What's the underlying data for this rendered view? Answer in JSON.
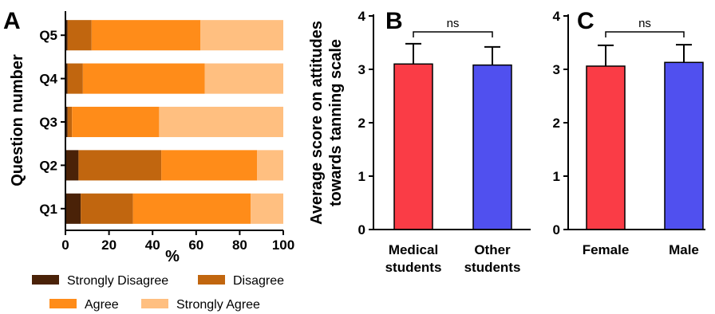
{
  "chart_data": [
    {
      "panel": "A",
      "type": "bar",
      "orientation": "horizontal",
      "stacked": true,
      "categories": [
        "Q5",
        "Q4",
        "Q3",
        "Q2",
        "Q1"
      ],
      "series": [
        {
          "name": "Strongly Disagree",
          "color": "#4a2208",
          "values": [
            1,
            1,
            1,
            6,
            7
          ]
        },
        {
          "name": "Disagree",
          "color": "#c1660f",
          "values": [
            11,
            7,
            2,
            38,
            24
          ]
        },
        {
          "name": "Agree",
          "color": "#ff8c19",
          "values": [
            50,
            56,
            40,
            44,
            54
          ]
        },
        {
          "name": "Strongly Agree",
          "color": "#ffbf80",
          "values": [
            38,
            36,
            57,
            12,
            15
          ]
        }
      ],
      "xlabel": "%",
      "ylabel": "Question number",
      "xlim": [
        0,
        100
      ],
      "xticks": [
        0,
        20,
        40,
        60,
        80,
        100
      ],
      "legend_position": "bottom"
    },
    {
      "panel": "B",
      "type": "bar",
      "categories": [
        [
          "Medical",
          "students"
        ],
        [
          "Other",
          "students"
        ]
      ],
      "values": [
        3.1,
        3.08
      ],
      "errors": [
        0.38,
        0.34
      ],
      "colors": [
        "#fa3c46",
        "#5050ef"
      ],
      "ylabel": [
        "Average score on attitudes",
        "towards tanning scale"
      ],
      "ylim": [
        0,
        4
      ],
      "yticks": [
        0,
        1,
        2,
        3,
        4
      ],
      "significance": "ns"
    },
    {
      "panel": "C",
      "type": "bar",
      "categories": [
        [
          "Female"
        ],
        [
          "Male"
        ]
      ],
      "values": [
        3.06,
        3.13
      ],
      "errors": [
        0.39,
        0.33
      ],
      "colors": [
        "#fa3c46",
        "#5050ef"
      ],
      "ylim": [
        0,
        4
      ],
      "yticks": [
        0,
        1,
        2,
        3,
        4
      ],
      "significance": "ns"
    }
  ]
}
